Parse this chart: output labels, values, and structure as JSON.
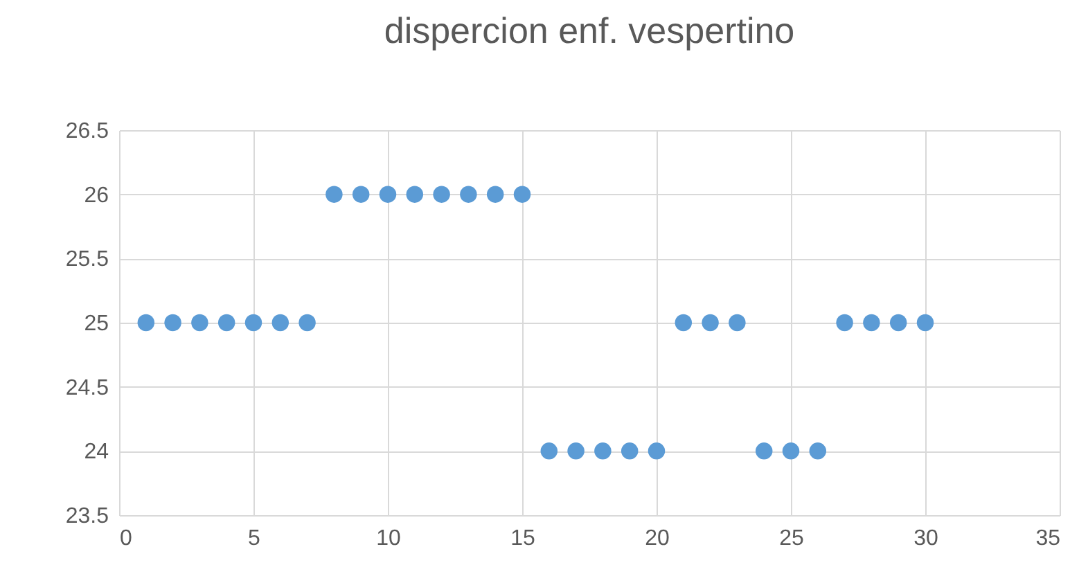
{
  "chart_data": {
    "type": "scatter",
    "title": "dispercion enf. vespertino",
    "x": [
      1,
      2,
      3,
      4,
      5,
      6,
      7,
      8,
      9,
      10,
      11,
      12,
      13,
      14,
      15,
      16,
      17,
      18,
      19,
      20,
      21,
      22,
      23,
      24,
      25,
      26,
      27,
      28,
      29,
      30
    ],
    "series": [
      {
        "color": "#5b9bd5",
        "values": [
          25,
          25,
          25,
          25,
          25,
          25,
          25,
          26,
          26,
          26,
          26,
          26,
          26,
          26,
          26,
          24,
          24,
          24,
          24,
          24,
          25,
          25,
          25,
          24,
          24,
          24,
          25,
          25,
          25,
          25
        ]
      }
    ],
    "xlim": [
      0,
      35
    ],
    "xticks": [
      0,
      5,
      10,
      15,
      20,
      25,
      30,
      35
    ],
    "ylim": [
      23.5,
      26.5
    ],
    "yticks": [
      23.5,
      24,
      24.5,
      25,
      25.5,
      26,
      26.5
    ],
    "grid": true,
    "marker": "circle"
  }
}
